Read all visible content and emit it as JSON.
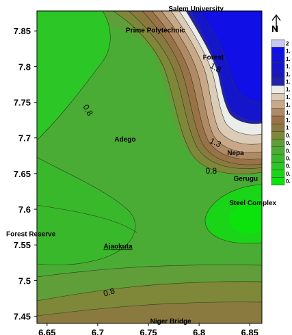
{
  "chart_data": {
    "type": "contour",
    "xlim": [
      6.64,
      6.862
    ],
    "ylim": [
      7.44,
      7.878
    ],
    "x_ticks": [
      "6.65",
      "6.7",
      "6.75",
      "6.8",
      "6.85"
    ],
    "y_ticks": [
      "7.85",
      "7.8",
      "7.75",
      "7.7",
      "7.65",
      "7.6",
      "7.55",
      "7.5",
      "7.45"
    ],
    "contour_labels": [
      {
        "text": "0.8",
        "x": 6.688,
        "y": 7.737,
        "rotate": 60
      },
      {
        "text": "1.8",
        "x": 6.815,
        "y": 7.795,
        "rotate": 30
      },
      {
        "text": "1.3",
        "x": 6.815,
        "y": 7.69,
        "rotate": 25
      },
      {
        "text": "0.8",
        "x": 6.812,
        "y": 7.65,
        "rotate": 0
      },
      {
        "text": "0.8",
        "x": 6.712,
        "y": 7.48,
        "rotate": -18
      }
    ],
    "places": [
      {
        "name": "Salem University",
        "x": 6.797,
        "y": 7.878
      },
      {
        "name": "Prime Polytechnic",
        "x": 6.757,
        "y": 7.848
      },
      {
        "name": "Forest",
        "x": 6.814,
        "y": 7.81
      },
      {
        "name": "Adego",
        "x": 6.727,
        "y": 7.695
      },
      {
        "name": "Nepa",
        "x": 6.836,
        "y": 7.676
      },
      {
        "name": "Gerugu",
        "x": 6.846,
        "y": 7.64
      },
      {
        "name": "Steel Complex",
        "x": 6.853,
        "y": 7.606
      },
      {
        "name": "Forest Reserve",
        "x": 6.641,
        "y": 7.562
      },
      {
        "name": "Ajaokuta",
        "x": 6.72,
        "y": 7.545,
        "underline": true
      },
      {
        "name": "Niger Bridge",
        "x": 6.772,
        "y": 7.44
      }
    ],
    "north_arrow": {
      "label": "N"
    },
    "legend": {
      "placement": "right",
      "colors": [
        "#c8c8f4",
        "#1010e6",
        "#1212d8",
        "#1515cc",
        "#1818be",
        "#2222a8",
        "#ececea",
        "#dccbb6",
        "#c8a888",
        "#b08a64",
        "#9a7248",
        "#8a7a40",
        "#7e8838",
        "#5f9e38",
        "#4aac34",
        "#3ab82c",
        "#2cc626",
        "#1ad418",
        "#0ce20c"
      ],
      "labels": [
        "2",
        "1.",
        "1.",
        "1.",
        "1.",
        "1.",
        "1.",
        "1.",
        "1.",
        "1.",
        "1.",
        "1",
        "0.",
        "0.",
        "0.",
        "0.",
        "0.",
        "0.",
        "0."
      ]
    }
  }
}
